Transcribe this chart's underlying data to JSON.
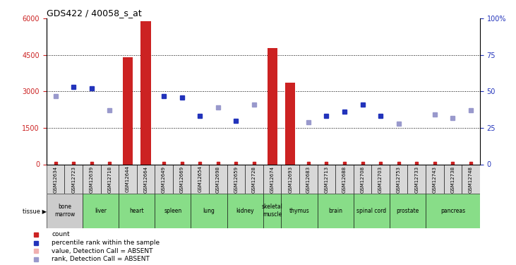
{
  "title": "GDS422 / 40058_s_at",
  "samples": [
    "GSM12634",
    "GSM12723",
    "GSM12639",
    "GSM12718",
    "GSM12644",
    "GSM12664",
    "GSM12649",
    "GSM12669",
    "GSM12654",
    "GSM12698",
    "GSM12659",
    "GSM12728",
    "GSM12674",
    "GSM12693",
    "GSM12683",
    "GSM12713",
    "GSM12688",
    "GSM12708",
    "GSM12703",
    "GSM12753",
    "GSM12733",
    "GSM12743",
    "GSM12738",
    "GSM12748"
  ],
  "tissues": [
    {
      "label": "bone\nmarrow",
      "start": 0,
      "end": 1,
      "color": "#cccccc"
    },
    {
      "label": "liver",
      "start": 2,
      "end": 3,
      "color": "#99ee99"
    },
    {
      "label": "heart",
      "start": 4,
      "end": 5,
      "color": "#99ee99"
    },
    {
      "label": "spleen",
      "start": 6,
      "end": 7,
      "color": "#99ee99"
    },
    {
      "label": "lung",
      "start": 8,
      "end": 9,
      "color": "#99ee99"
    },
    {
      "label": "kidney",
      "start": 10,
      "end": 11,
      "color": "#99ee99"
    },
    {
      "label": "skeletal\nmuscle",
      "start": 12,
      "end": 12,
      "color": "#99ee99"
    },
    {
      "label": "thymus",
      "start": 13,
      "end": 14,
      "color": "#99ee99"
    },
    {
      "label": "brain",
      "start": 15,
      "end": 16,
      "color": "#99ee99"
    },
    {
      "label": "spinal cord",
      "start": 17,
      "end": 18,
      "color": "#99ee99"
    },
    {
      "label": "prostate",
      "start": 19,
      "end": 20,
      "color": "#99ee99"
    },
    {
      "label": "pancreas",
      "start": 21,
      "end": 23,
      "color": "#99ee99"
    }
  ],
  "bar_values": [
    0,
    0,
    0,
    0,
    4400,
    5900,
    0,
    0,
    0,
    0,
    0,
    0,
    4800,
    3350,
    0,
    0,
    0,
    0,
    0,
    0,
    0,
    0,
    0,
    0
  ],
  "rank_present": [
    null,
    53,
    52,
    null,
    null,
    null,
    47,
    46,
    33,
    null,
    30,
    null,
    null,
    null,
    null,
    33,
    36,
    41,
    33,
    null,
    null,
    null,
    null,
    null
  ],
  "rank_absent": [
    47,
    null,
    null,
    37,
    null,
    null,
    null,
    null,
    null,
    39,
    null,
    41,
    null,
    null,
    29,
    null,
    null,
    null,
    null,
    28,
    null,
    34,
    32,
    37
  ],
  "ylim": [
    0,
    6000
  ],
  "yticks_left": [
    0,
    1500,
    3000,
    4500,
    6000
  ],
  "yticks_right": [
    0,
    25,
    50,
    75,
    100
  ],
  "bar_color": "#cc2222",
  "dot_color": "#2233bb",
  "dot_absent_color": "#9999cc"
}
